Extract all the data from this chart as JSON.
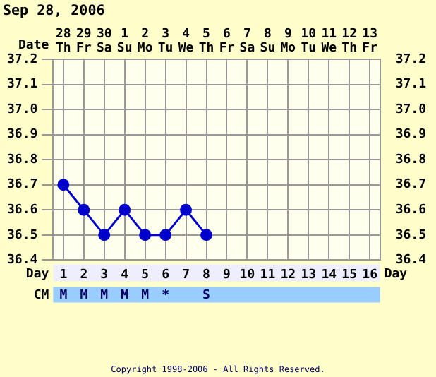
{
  "chart_data": {
    "type": "line",
    "title": "Sep 28, 2006",
    "xlabel": "Day",
    "x": [
      1,
      2,
      3,
      4,
      5,
      6,
      7,
      8
    ],
    "series": [
      {
        "color": "#0000cc",
        "values": [
          36.7,
          36.6,
          36.5,
          36.6,
          36.5,
          36.5,
          36.6,
          36.5
        ]
      }
    ],
    "xlim": [
      0.5,
      16.5
    ],
    "xticks": [
      1,
      2,
      3,
      4,
      5,
      6,
      7,
      8,
      9,
      10,
      11,
      12,
      13,
      14,
      15,
      16
    ],
    "ylim": [
      36.4,
      37.2
    ],
    "yticks": [
      36.4,
      36.5,
      36.6,
      36.7,
      36.8,
      36.9,
      {
        "value": 37.0,
        "label": "37.0"
      },
      37.1,
      37.2
    ],
    "y2lim": [
      36.4,
      37.2
    ],
    "y2ticks": [
      36.4,
      36.5,
      36.6,
      36.7,
      36.8,
      36.9,
      {
        "value": 37.0,
        "label": "37.0"
      },
      37.1,
      37.2
    ],
    "grid": true,
    "marker": "circle",
    "line_style": "solid",
    "annotations": [
      "Date",
      "28 Th",
      "29 Fr",
      "30 Sa",
      "1 Su",
      "2 Mo",
      "3 Tu",
      "4 We",
      "5 Th",
      "6 Fr",
      "7 Sa",
      "8 Su",
      "9 Mo",
      "10 Tu",
      "11 We",
      "12 Th",
      "13 Fr",
      "CM",
      "M M M M M *  S",
      "Copyright 1998-2006 - All Rights Reserved."
    ]
  }
}
